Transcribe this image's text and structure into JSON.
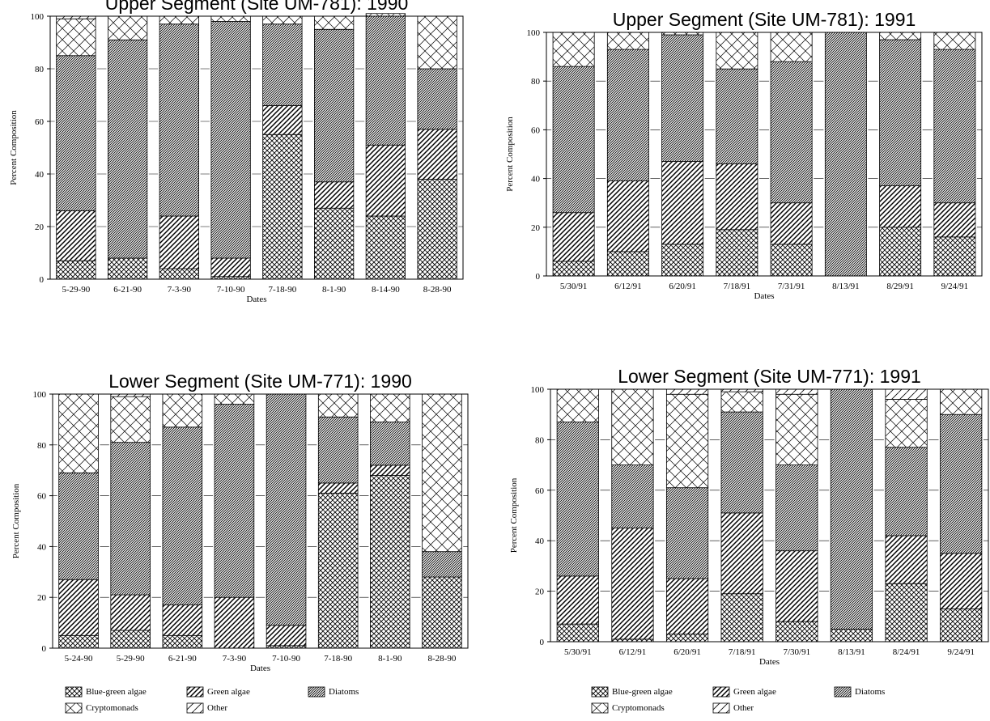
{
  "colors": {
    "ink": "#000000",
    "background": "#ffffff"
  },
  "legend": {
    "items": [
      {
        "key": "blue_green",
        "label": "Blue-green algae"
      },
      {
        "key": "green",
        "label": "Green algae"
      },
      {
        "key": "diatoms",
        "label": "Diatoms"
      },
      {
        "key": "crypto",
        "label": "Cryptomonads"
      },
      {
        "key": "other",
        "label": "Other"
      }
    ]
  },
  "chart_data": [
    {
      "type": "bar",
      "stacked": true,
      "title": "Upper Segment (Site UM-781): 1990",
      "xlabel": "Dates",
      "ylabel": "Percent Composition",
      "ylim": [
        0,
        100
      ],
      "yticks": [
        0,
        20,
        40,
        60,
        80,
        100
      ],
      "categories": [
        "5-29-90",
        "6-21-90",
        "7-3-90",
        "7-10-90",
        "7-18-90",
        "8-1-90",
        "8-14-90",
        "8-28-90"
      ],
      "series": [
        {
          "name": "Blue-green algae",
          "key": "blue_green",
          "values": [
            7,
            8,
            4,
            1,
            55,
            27,
            24,
            38
          ]
        },
        {
          "name": "Green algae",
          "key": "green",
          "values": [
            19,
            0,
            20,
            7,
            11,
            10,
            27,
            19
          ]
        },
        {
          "name": "Diatoms",
          "key": "diatoms",
          "values": [
            59,
            83,
            73,
            90,
            31,
            58,
            49,
            23
          ]
        },
        {
          "name": "Cryptomonads",
          "key": "crypto",
          "values": [
            14,
            9,
            3,
            2,
            3,
            5,
            1,
            20
          ]
        },
        {
          "name": "Other",
          "key": "other",
          "values": [
            1,
            0,
            0,
            0,
            0,
            0,
            0,
            0
          ]
        }
      ]
    },
    {
      "type": "bar",
      "stacked": true,
      "title": "Upper Segment (Site UM-781): 1991",
      "xlabel": "Dates",
      "ylabel": "Percent Composition",
      "ylim": [
        0,
        100
      ],
      "yticks": [
        0,
        20,
        40,
        60,
        80,
        100
      ],
      "categories": [
        "5/30/91",
        "6/12/91",
        "6/20/91",
        "7/18/91",
        "7/31/91",
        "8/13/91",
        "8/29/91",
        "9/24/91"
      ],
      "series": [
        {
          "name": "Blue-green algae",
          "key": "blue_green",
          "values": [
            6,
            10,
            13,
            19,
            13,
            0,
            20,
            16
          ]
        },
        {
          "name": "Green algae",
          "key": "green",
          "values": [
            20,
            29,
            34,
            27,
            17,
            0,
            17,
            14
          ]
        },
        {
          "name": "Diatoms",
          "key": "diatoms",
          "values": [
            60,
            54,
            52,
            39,
            58,
            100,
            60,
            63
          ]
        },
        {
          "name": "Cryptomonads",
          "key": "crypto",
          "values": [
            14,
            7,
            1,
            15,
            12,
            0,
            3,
            7
          ]
        },
        {
          "name": "Other",
          "key": "other",
          "values": [
            0,
            0,
            0,
            0,
            0,
            0,
            0,
            0
          ]
        }
      ]
    },
    {
      "type": "bar",
      "stacked": true,
      "title": "Lower Segment (Site UM-771): 1990",
      "xlabel": "Dates",
      "ylabel": "Percent Composition",
      "ylim": [
        0,
        100
      ],
      "yticks": [
        0,
        20,
        40,
        60,
        80,
        100
      ],
      "categories": [
        "5-24-90",
        "5-29-90",
        "6-21-90",
        "7-3-90",
        "7-10-90",
        "7-18-90",
        "8-1-90",
        "8-28-90"
      ],
      "series": [
        {
          "name": "Blue-green algae",
          "key": "blue_green",
          "values": [
            5,
            7,
            5,
            0,
            1,
            61,
            68,
            28
          ]
        },
        {
          "name": "Green algae",
          "key": "green",
          "values": [
            22,
            14,
            12,
            20,
            8,
            4,
            4,
            0
          ]
        },
        {
          "name": "Diatoms",
          "key": "diatoms",
          "values": [
            42,
            60,
            70,
            76,
            91,
            26,
            17,
            10
          ]
        },
        {
          "name": "Cryptomonads",
          "key": "crypto",
          "values": [
            31,
            18,
            13,
            4,
            0,
            9,
            11,
            62
          ]
        },
        {
          "name": "Other",
          "key": "other",
          "values": [
            0,
            1,
            0,
            0,
            0,
            0,
            0,
            0
          ]
        }
      ]
    },
    {
      "type": "bar",
      "stacked": true,
      "title": "Lower Segment (Site UM-771): 1991",
      "xlabel": "Dates",
      "ylabel": "Percent Composition",
      "ylim": [
        0,
        100
      ],
      "yticks": [
        0,
        20,
        40,
        60,
        80,
        100
      ],
      "categories": [
        "5/30/91",
        "6/12/91",
        "6/20/91",
        "7/18/91",
        "7/30/91",
        "8/13/91",
        "8/24/91",
        "9/24/91"
      ],
      "series": [
        {
          "name": "Blue-green algae",
          "key": "blue_green",
          "values": [
            7,
            1,
            3,
            19,
            8,
            5,
            23,
            13
          ]
        },
        {
          "name": "Green algae",
          "key": "green",
          "values": [
            19,
            44,
            22,
            32,
            28,
            0,
            19,
            22
          ]
        },
        {
          "name": "Diatoms",
          "key": "diatoms",
          "values": [
            61,
            25,
            36,
            40,
            34,
            95,
            35,
            55
          ]
        },
        {
          "name": "Cryptomonads",
          "key": "crypto",
          "values": [
            13,
            30,
            37,
            8,
            28,
            0,
            19,
            10
          ]
        },
        {
          "name": "Other",
          "key": "other",
          "values": [
            0,
            0,
            2,
            1,
            2,
            0,
            4,
            0
          ]
        }
      ]
    }
  ]
}
